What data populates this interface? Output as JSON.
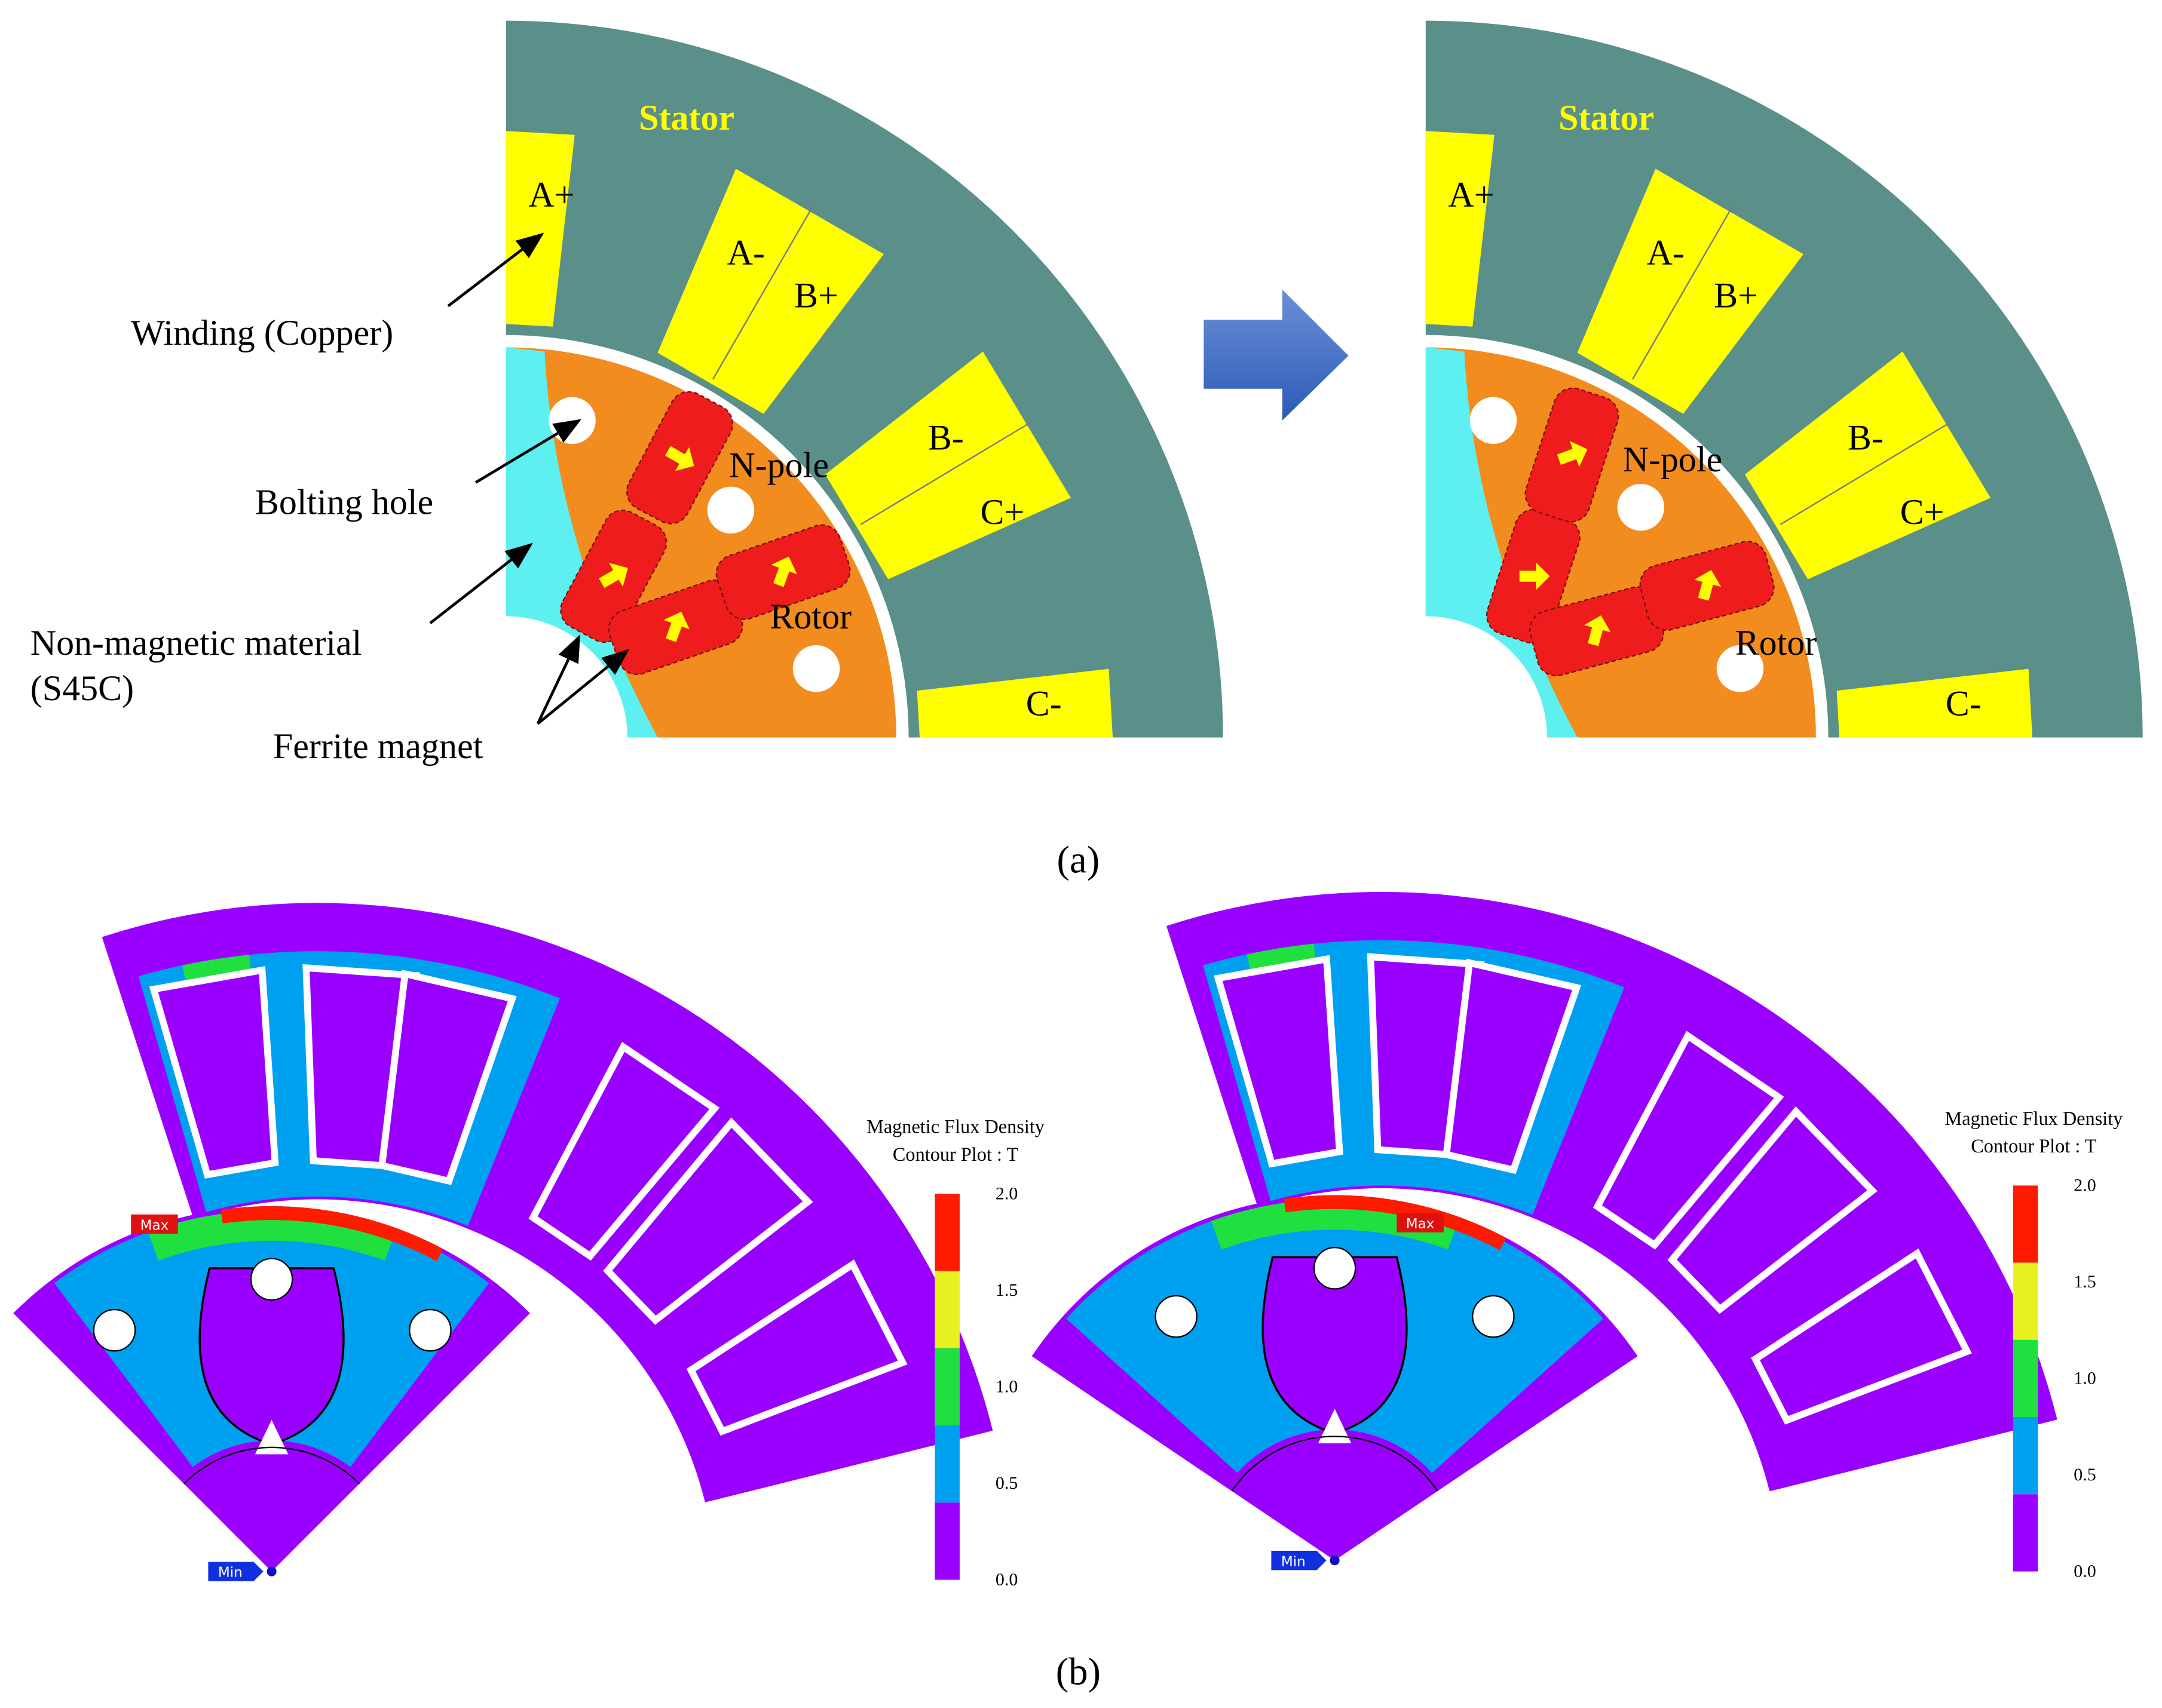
{
  "panel_a": {
    "left": {
      "stator": "Stator",
      "slots": [
        "A+",
        "A-",
        "B+",
        "B-",
        "C+",
        "C-"
      ],
      "n_pole": "N-pole",
      "rotor": "Rotor"
    },
    "right": {
      "stator": "Stator",
      "slots": [
        "A+",
        "A-",
        "B+",
        "B-",
        "C+",
        "C-"
      ],
      "n_pole": "N-pole",
      "rotor": "Rotor"
    },
    "callouts": {
      "winding": "Winding (Copper)",
      "bolting_hole": "Bolting hole",
      "non_magnetic": "Non-magnetic material",
      "non_magnetic_grade": "(S45C)",
      "magnet": "Ferrite magnet"
    },
    "caption": "(a)"
  },
  "panel_b": {
    "legend": {
      "title": [
        "Magnetic Flux Density",
        "Contour Plot : T"
      ],
      "ticks": [
        "2.0",
        "1.5",
        "1.0",
        "0.5",
        "0.0"
      ]
    },
    "max_label": "Max",
    "min_label": "Min",
    "caption": "(b)"
  }
}
